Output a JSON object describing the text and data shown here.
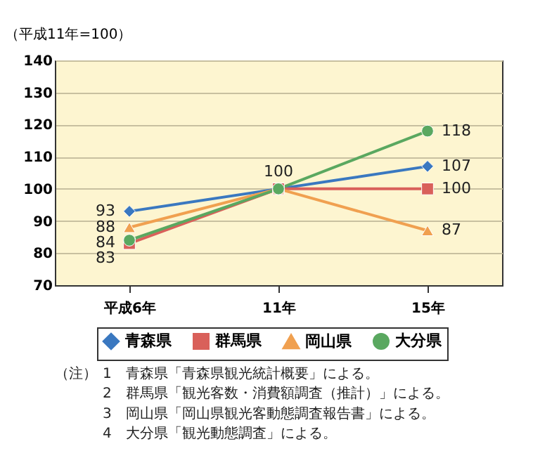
{
  "chart_data": {
    "type": "line",
    "ylabel": "（平成11年=100）",
    "categories": [
      "平成6年",
      "11年",
      "15年"
    ],
    "ylim": [
      70,
      140
    ],
    "yticks": [
      70,
      80,
      90,
      100,
      110,
      120,
      130,
      140
    ],
    "grid": "y",
    "legend": "bottom",
    "line_style": "solid",
    "series": [
      {
        "name": "青森県",
        "color": "#3a78c0",
        "marker": "diamond",
        "values": [
          93,
          100,
          107
        ],
        "value_labels": [
          "93",
          null,
          "107"
        ]
      },
      {
        "name": "群馬県",
        "color": "#d9605a",
        "marker": "square",
        "values": [
          83,
          100,
          100
        ],
        "value_labels": [
          "83",
          null,
          "100"
        ]
      },
      {
        "name": "岡山県",
        "color": "#f0a050",
        "marker": "triangle",
        "values": [
          88,
          100,
          87
        ],
        "value_labels": [
          "88",
          null,
          "87"
        ]
      },
      {
        "name": "大分県",
        "color": "#5aa860",
        "marker": "circle",
        "values": [
          84,
          100,
          118
        ],
        "value_labels": [
          "84",
          "100",
          "118"
        ]
      }
    ],
    "annotations": [
      "（注）",
      "1　青森県「青森県観光統計概要」による。",
      "2　群馬県「観光客数・消費額調査（推計）」による。",
      "3　岡山県「岡山県観光客動態調査報告書」による。",
      "4　大分県「観光動態調査」による。"
    ]
  }
}
